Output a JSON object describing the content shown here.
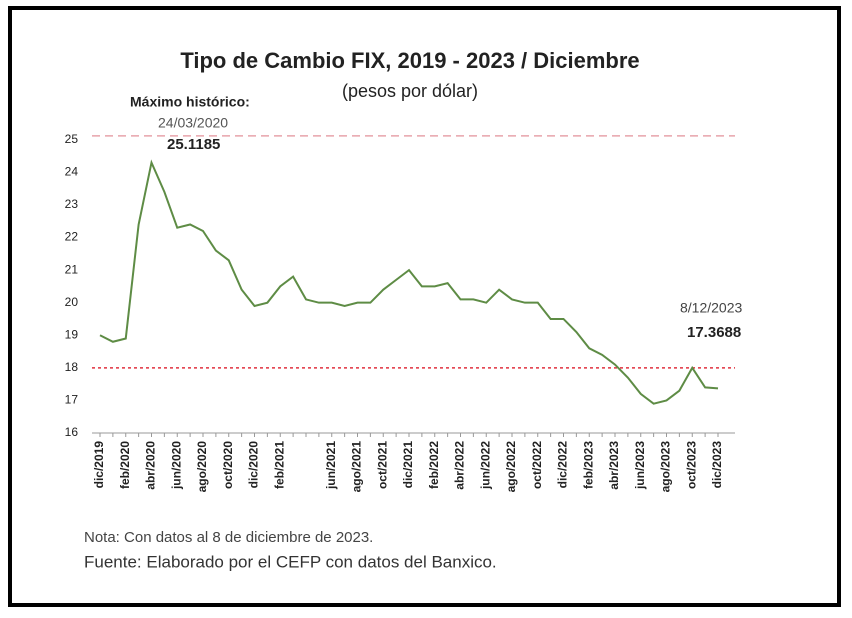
{
  "chart_data": {
    "type": "line",
    "title": "Tipo de Cambio FIX, 2019 - 2023 / Diciembre",
    "subtitle": "(pesos por dólar)",
    "categories": [
      "dic/2019",
      null,
      "feb/2020",
      null,
      "abr/2020",
      null,
      "jun/2020",
      null,
      "ago/2020",
      null,
      "oct/2020",
      null,
      "dic/2020",
      null,
      "feb/2021",
      null,
      null,
      null,
      "jun/2021",
      null,
      "ago/2021",
      null,
      "oct/2021",
      null,
      "dic/2021",
      null,
      "feb/2022",
      null,
      "abr/2022",
      null,
      "jun/2022",
      null,
      "ago/2022",
      null,
      "oct/2022",
      null,
      "dic/2022",
      null,
      "feb/2023",
      null,
      "abr/2023",
      null,
      "jun/2023",
      null,
      "ago/2023",
      null,
      "oct/2023",
      null,
      "dic/2023"
    ],
    "series": [
      {
        "name": "FIX",
        "color": "#5e8c45",
        "values": [
          19.0,
          18.8,
          18.9,
          22.4,
          24.3,
          23.4,
          22.3,
          22.4,
          22.2,
          21.6,
          21.3,
          20.4,
          19.9,
          20.0,
          20.5,
          20.8,
          20.1,
          20.0,
          20.0,
          19.9,
          20.0,
          20.0,
          20.4,
          20.7,
          21.0,
          20.5,
          20.5,
          20.6,
          20.1,
          20.1,
          20.0,
          20.4,
          20.1,
          20.0,
          20.0,
          19.5,
          19.5,
          19.1,
          18.6,
          18.4,
          18.1,
          17.7,
          17.2,
          16.9,
          17.0,
          17.3,
          18.0,
          17.4,
          17.3688
        ]
      }
    ],
    "ylim": [
      16,
      25.3
    ],
    "yticks": [
      16,
      17,
      18,
      19,
      20,
      21,
      22,
      23,
      24,
      25
    ],
    "reference_lines": [
      {
        "value": 25.1185,
        "color": "#e8a3ab"
      },
      {
        "value": 18,
        "color": "#e0303f"
      }
    ],
    "annotations": [
      "Máximo histórico:",
      "24/03/2020",
      "25.1185",
      "8/12/2023",
      "17.3688"
    ],
    "notes": [
      "Nota: Con datos al 8 de diciembre de 2023.",
      "Fuente: Elaborado por el CEFP con datos del Banxico."
    ]
  }
}
